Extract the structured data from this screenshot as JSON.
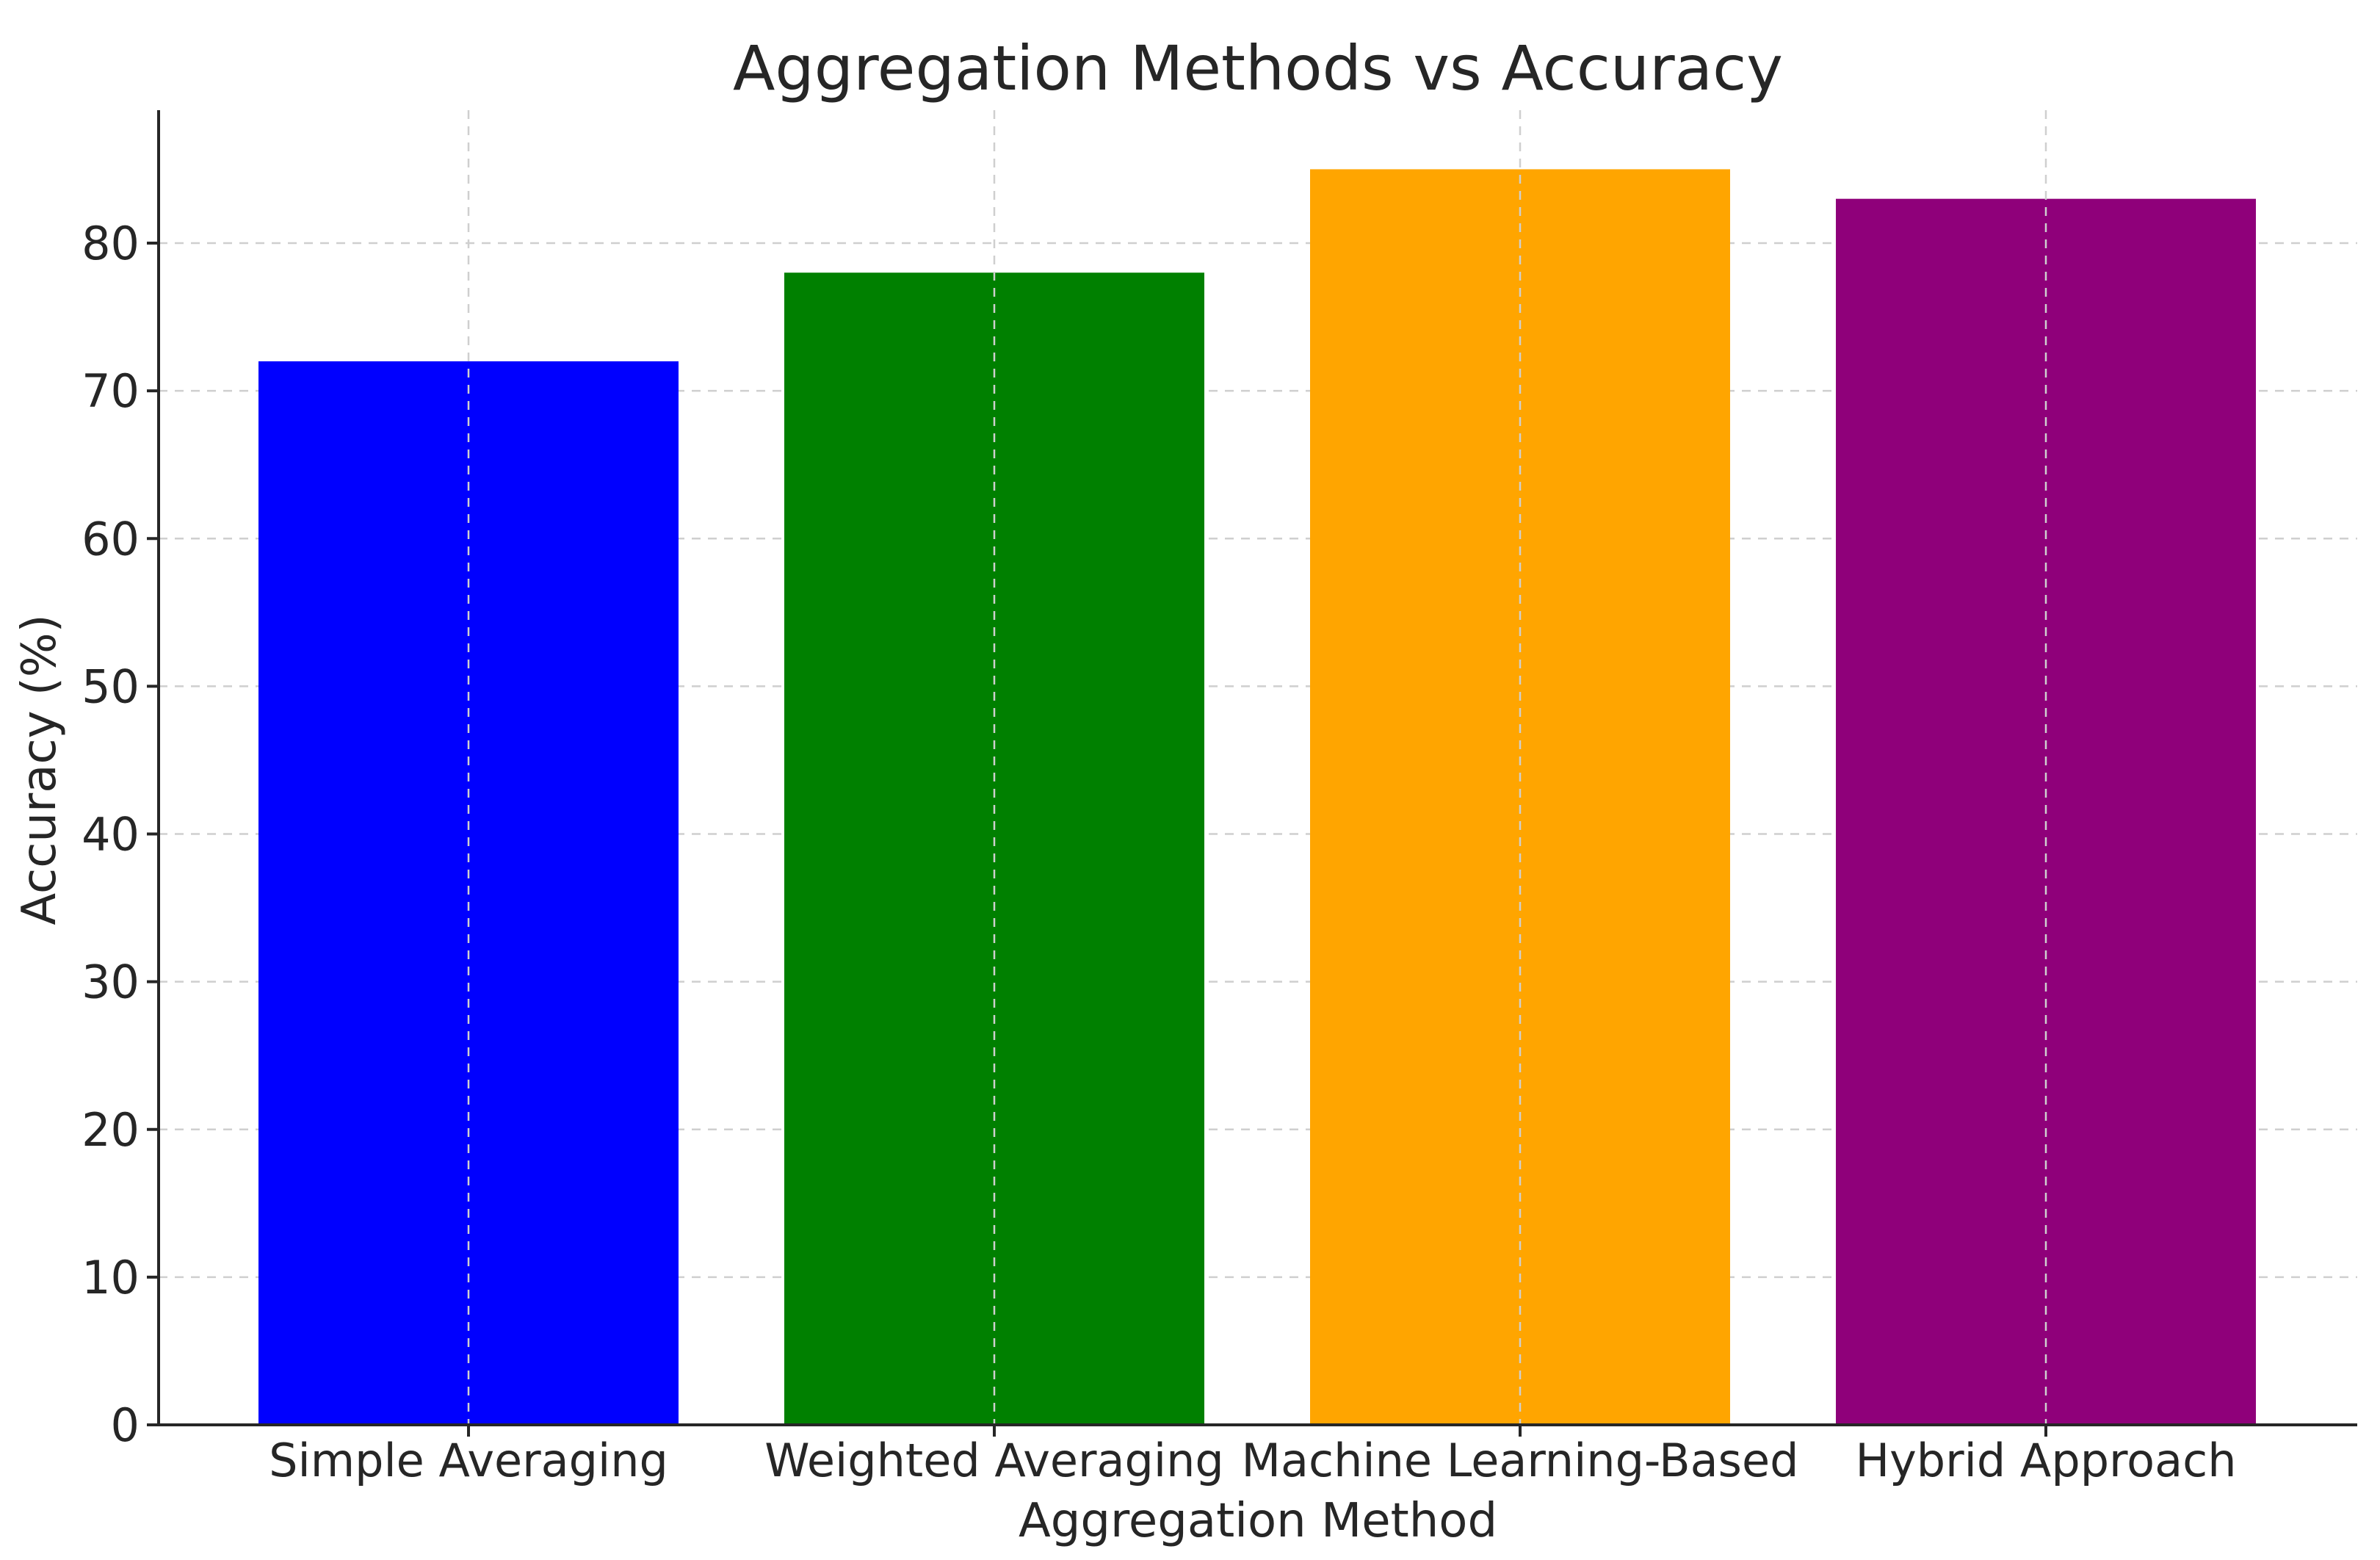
{
  "chart_data": {
    "type": "bar",
    "title": "Aggregation Methods vs Accuracy",
    "xlabel": "Aggregation Method",
    "ylabel": "Accuracy (%)",
    "categories": [
      "Simple Averaging",
      "Weighted Averaging",
      "Machine Learning-Based",
      "Hybrid Approach"
    ],
    "values": [
      72,
      78,
      85,
      83
    ],
    "colors": [
      "#0000ff",
      "#008000",
      "#ffa500",
      "#8f007a"
    ],
    "ylim": [
      0,
      89
    ],
    "yticks": [
      0,
      10,
      20,
      30,
      40,
      50,
      60,
      70,
      80
    ],
    "grid": true,
    "legend": "none"
  }
}
